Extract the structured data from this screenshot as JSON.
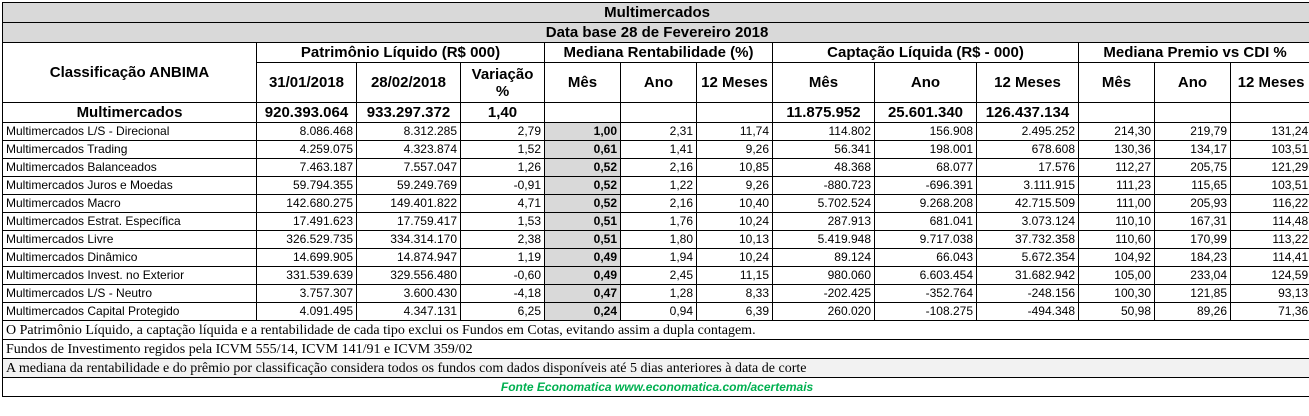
{
  "title": "Multimercados",
  "date_line": "Data base 28 de Fevereiro 2018",
  "class_header": "Classificação ANBIMA",
  "groups": [
    "Patrimônio Líquido (R$ 000)",
    "Mediana Rentabilidade (%)",
    "Captação Líquida (R$ - 000)",
    "Mediana Premio vs CDI %"
  ],
  "subheaders": [
    "31/01/2018",
    "28/02/2018",
    "Variação %",
    "Mês",
    "Ano",
    "12 Meses",
    "Mês",
    "Ano",
    "12 Meses",
    "Mês",
    "Ano",
    "12 Meses"
  ],
  "total_row": {
    "label": "Multimercados",
    "cells": [
      "920.393.064",
      "933.297.372",
      "1,40",
      "",
      "",
      "",
      "11.875.952",
      "25.601.340",
      "126.437.134",
      "",
      "",
      ""
    ]
  },
  "rows": [
    {
      "name": "Multimercados L/S - Direcional",
      "cells": [
        "8.086.468",
        "8.312.285",
        "2,79",
        "1,00",
        "2,31",
        "11,74",
        "114.802",
        "156.908",
        "2.495.252",
        "214,30",
        "219,79",
        "131,24"
      ]
    },
    {
      "name": "Multimercados Trading",
      "cells": [
        "4.259.075",
        "4.323.874",
        "1,52",
        "0,61",
        "1,41",
        "9,26",
        "56.341",
        "198.001",
        "678.608",
        "130,36",
        "134,17",
        "103,51"
      ]
    },
    {
      "name": "Multimercados Balanceados",
      "cells": [
        "7.463.187",
        "7.557.047",
        "1,26",
        "0,52",
        "2,16",
        "10,85",
        "48.368",
        "68.077",
        "17.576",
        "112,27",
        "205,75",
        "121,29"
      ]
    },
    {
      "name": "Multimercados Juros e Moedas",
      "cells": [
        "59.794.355",
        "59.249.769",
        "-0,91",
        "0,52",
        "1,22",
        "9,26",
        "-880.723",
        "-696.391",
        "3.111.915",
        "111,23",
        "115,65",
        "103,51"
      ]
    },
    {
      "name": "Multimercados Macro",
      "cells": [
        "142.680.275",
        "149.401.822",
        "4,71",
        "0,52",
        "2,16",
        "10,40",
        "5.702.524",
        "9.268.208",
        "42.715.509",
        "111,00",
        "205,93",
        "116,22"
      ]
    },
    {
      "name": "Multimercados Estrat. Específica",
      "cells": [
        "17.491.623",
        "17.759.417",
        "1,53",
        "0,51",
        "1,76",
        "10,24",
        "287.913",
        "681.041",
        "3.073.124",
        "110,10",
        "167,31",
        "114,48"
      ]
    },
    {
      "name": "Multimercados Livre",
      "cells": [
        "326.529.735",
        "334.314.170",
        "2,38",
        "0,51",
        "1,80",
        "10,13",
        "5.419.948",
        "9.717.038",
        "37.732.358",
        "110,60",
        "170,99",
        "113,22"
      ]
    },
    {
      "name": "Multimercados Dinâmico",
      "cells": [
        "14.699.905",
        "14.874.947",
        "1,19",
        "0,49",
        "1,94",
        "10,24",
        "89.124",
        "66.043",
        "5.672.354",
        "104,92",
        "184,23",
        "114,41"
      ]
    },
    {
      "name": "Multimercados Invest. no Exterior",
      "cells": [
        "331.539.639",
        "329.556.480",
        "-0,60",
        "0,49",
        "2,45",
        "11,15",
        "980.060",
        "6.603.454",
        "31.682.942",
        "105,00",
        "233,04",
        "124,59"
      ]
    },
    {
      "name": "Multimercados L/S - Neutro",
      "cells": [
        "3.757.307",
        "3.600.430",
        "-4,18",
        "0,47",
        "1,28",
        "8,33",
        "-202.425",
        "-352.764",
        "-248.156",
        "100,30",
        "121,85",
        "93,13"
      ]
    },
    {
      "name": "Multimercados Capital Protegido",
      "cells": [
        "4.091.495",
        "4.347.131",
        "6,25",
        "0,24",
        "0,94",
        "6,39",
        "260.020",
        "-108.275",
        "-494.348",
        "50,98",
        "89,26",
        "71,36"
      ]
    }
  ],
  "notes": [
    "O Patrimônio Líquido, a captação líquida e a rentabilidade de cada tipo exclui os Fundos em Cotas, evitando assim a dupla contagem.",
    "Fundos de Investimento regidos pela ICVM 555/14, ICVM 141/91 e ICVM 359/02",
    "A mediana da rentabilidade  e do prêmio por classificação considera todos os fundos com dados disponíveis até 5 dias anteriores à data de corte"
  ],
  "source": "Fonte Economatica www.economatica.com/acertemais",
  "colors": {
    "header_gray": "#d9d9d9",
    "source_green": "#00b050"
  }
}
